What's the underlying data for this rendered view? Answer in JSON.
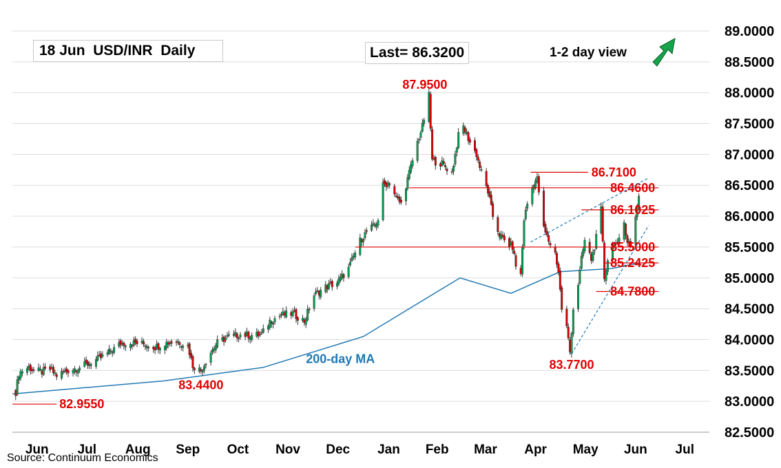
{
  "header": {
    "title": "18 Jun  USD/INR  Daily",
    "last": "Last= 86.3200",
    "view": "1-2 day view"
  },
  "source": "Source: Continuum Economics",
  "colors": {
    "up": "#00a651",
    "down": "#e00000",
    "level": "#e00000",
    "ma": "#1f78b4",
    "grid": "#dcdcdc",
    "arrow": "#16a34a"
  },
  "chart_data": {
    "type": "candlestick",
    "title": "18 Jun  USD/INR  Daily",
    "ylim": [
      82.5,
      89.0
    ],
    "yticks": [
      "82.5000",
      "83.0000",
      "83.5000",
      "84.0000",
      "84.5000",
      "85.0000",
      "85.5000",
      "86.0000",
      "86.5000",
      "87.0000",
      "87.5000",
      "88.0000",
      "88.5000",
      "89.0000"
    ],
    "months": [
      "Jun",
      "Jul",
      "Aug",
      "Sep",
      "Oct",
      "Nov",
      "Dec",
      "Jan",
      "Feb",
      "Mar",
      "Apr",
      "May",
      "Jun",
      "Jul"
    ],
    "xrange": [
      "2024-06-01",
      "2025-07-31"
    ],
    "month_starts": [
      "2024-06-01",
      "2024-07-01",
      "2024-08-01",
      "2024-09-01",
      "2024-10-01",
      "2024-11-01",
      "2024-12-01",
      "2025-01-01",
      "2025-02-01",
      "2025-03-01",
      "2025-04-01",
      "2025-05-01",
      "2025-06-01",
      "2025-07-01"
    ],
    "grid": "horizontal",
    "closes": [
      [
        "2024-06-03",
        83.15
      ],
      [
        "2024-06-05",
        83.45
      ],
      [
        "2024-06-07",
        83.5
      ],
      [
        "2024-06-11",
        83.55
      ],
      [
        "2024-06-14",
        83.5
      ],
      [
        "2024-06-19",
        83.48
      ],
      [
        "2024-06-24",
        83.52
      ],
      [
        "2024-06-28",
        83.42
      ],
      [
        "2024-07-05",
        83.5
      ],
      [
        "2024-07-12",
        83.55
      ],
      [
        "2024-07-19",
        83.63
      ],
      [
        "2024-07-26",
        83.72
      ],
      [
        "2024-08-02",
        83.85
      ],
      [
        "2024-08-06",
        83.94
      ],
      [
        "2024-08-13",
        83.95
      ],
      [
        "2024-08-20",
        83.93
      ],
      [
        "2024-08-27",
        83.88
      ],
      [
        "2024-09-03",
        83.95
      ],
      [
        "2024-09-10",
        83.97
      ],
      [
        "2024-09-16",
        83.9
      ],
      [
        "2024-09-19",
        83.58
      ],
      [
        "2024-09-24",
        83.5
      ],
      [
        "2024-09-30",
        83.8
      ],
      [
        "2024-10-04",
        83.95
      ],
      [
        "2024-10-11",
        84.05
      ],
      [
        "2024-10-18",
        84.08
      ],
      [
        "2024-10-25",
        84.07
      ],
      [
        "2024-10-31",
        84.08
      ],
      [
        "2024-11-05",
        84.3
      ],
      [
        "2024-11-12",
        84.4
      ],
      [
        "2024-11-19",
        84.42
      ],
      [
        "2024-11-26",
        84.3
      ],
      [
        "2024-12-02",
        84.72
      ],
      [
        "2024-12-09",
        84.85
      ],
      [
        "2024-12-16",
        84.92
      ],
      [
        "2024-12-23",
        85.15
      ],
      [
        "2024-12-30",
        85.6
      ],
      [
        "2025-01-03",
        85.75
      ],
      [
        "2025-01-08",
        85.85
      ],
      [
        "2025-01-10",
        85.95
      ],
      [
        "2025-01-13",
        86.5
      ],
      [
        "2025-01-17",
        86.55
      ],
      [
        "2025-01-21",
        86.3
      ],
      [
        "2025-01-24",
        86.2
      ],
      [
        "2025-01-28",
        86.6
      ],
      [
        "2025-02-03",
        87.2
      ],
      [
        "2025-02-06",
        87.45
      ],
      [
        "2025-02-10",
        87.95
      ],
      [
        "2025-02-12",
        86.9
      ],
      [
        "2025-02-18",
        86.85
      ],
      [
        "2025-02-24",
        86.7
      ],
      [
        "2025-02-28",
        87.3
      ],
      [
        "2025-03-03",
        87.45
      ],
      [
        "2025-03-07",
        87.2
      ],
      [
        "2025-03-11",
        87.0
      ],
      [
        "2025-03-14",
        86.7
      ],
      [
        "2025-03-18",
        86.4
      ],
      [
        "2025-03-21",
        86.0
      ],
      [
        "2025-03-25",
        85.7
      ],
      [
        "2025-03-28",
        85.6
      ],
      [
        "2025-04-02",
        85.5
      ],
      [
        "2025-04-04",
        85.2
      ],
      [
        "2025-04-07",
        85.05
      ],
      [
        "2025-04-09",
        85.95
      ],
      [
        "2025-04-11",
        86.2
      ],
      [
        "2025-04-15",
        86.55
      ],
      [
        "2025-04-17",
        86.6
      ],
      [
        "2025-04-21",
        85.8
      ],
      [
        "2025-04-24",
        85.6
      ],
      [
        "2025-04-28",
        85.4
      ],
      [
        "2025-04-30",
        85.1
      ],
      [
        "2025-05-02",
        84.5
      ],
      [
        "2025-05-05",
        84.2
      ],
      [
        "2025-05-07",
        83.8
      ],
      [
        "2025-05-09",
        84.5
      ],
      [
        "2025-05-12",
        84.9
      ],
      [
        "2025-05-14",
        85.3
      ],
      [
        "2025-05-16",
        85.6
      ],
      [
        "2025-05-20",
        85.3
      ],
      [
        "2025-05-22",
        85.5
      ],
      [
        "2025-05-26",
        86.1
      ],
      [
        "2025-05-28",
        85.0
      ],
      [
        "2025-05-30",
        85.3
      ],
      [
        "2025-06-03",
        85.6
      ],
      [
        "2025-06-05",
        85.5
      ],
      [
        "2025-06-09",
        85.9
      ],
      [
        "2025-06-11",
        85.6
      ],
      [
        "2025-06-13",
        85.5
      ],
      [
        "2025-06-16",
        86.0
      ],
      [
        "2025-06-17",
        86.2
      ],
      [
        "2025-06-18",
        86.32
      ]
    ],
    "series": [
      {
        "label": "200-day MA",
        "values": [
          [
            "2024-06-01",
            83.12
          ],
          [
            "2024-09-01",
            83.33
          ],
          [
            "2024-11-01",
            83.55
          ],
          [
            "2025-01-01",
            84.05
          ],
          [
            "2025-02-01",
            84.55
          ],
          [
            "2025-03-01",
            85.0
          ],
          [
            "2025-04-01",
            84.75
          ],
          [
            "2025-05-01",
            85.1
          ],
          [
            "2025-06-01",
            85.15
          ],
          [
            "2025-06-18",
            85.24
          ]
        ]
      }
    ],
    "levels": [
      {
        "value": 87.95,
        "label": "87.9500",
        "from": "2025-02-03",
        "to": "2025-02-12",
        "line": false,
        "label_pos": "above"
      },
      {
        "value": 86.71,
        "label": "86.7100",
        "from": "2025-04-13",
        "to": "2025-05-18",
        "line": true,
        "label_pos": "right"
      },
      {
        "value": 86.46,
        "label": "86.4600",
        "from": "2025-01-29",
        "to": "2025-06-30",
        "line": true,
        "label_pos": "right"
      },
      {
        "value": 86.1025,
        "label": "86.1025",
        "from": "2025-05-14",
        "to": "2025-06-30",
        "line": true,
        "label_pos": "right"
      },
      {
        "value": 85.5,
        "label": "85.5000",
        "from": "2024-12-27",
        "to": "2025-06-30",
        "line": true,
        "label_pos": "right"
      },
      {
        "value": 85.2425,
        "label": "85.2425",
        "from": "2025-05-28",
        "to": "2025-06-30",
        "line": true,
        "label_pos": "right"
      },
      {
        "value": 84.78,
        "label": "84.7800",
        "from": "2025-05-23",
        "to": "2025-06-30",
        "line": true,
        "label_pos": "right"
      },
      {
        "value": 83.77,
        "label": "83.7700",
        "from": "2025-05-08",
        "to": "2025-05-08",
        "line": false,
        "label_pos": "below"
      },
      {
        "value": 83.44,
        "label": "83.4400",
        "from": "2024-09-24",
        "to": "2024-09-24",
        "line": false,
        "label_pos": "below"
      },
      {
        "value": 82.955,
        "label": "82.9550",
        "from": "2024-06-01",
        "to": "2024-06-28",
        "line": true,
        "label_pos": "right"
      }
    ],
    "trendlines": [
      {
        "from": [
          "2025-04-13",
          85.58
        ],
        "to": [
          "2025-06-24",
          86.62
        ]
      },
      {
        "from": [
          "2025-05-08",
          83.77
        ],
        "to": [
          "2025-06-24",
          85.85
        ]
      }
    ],
    "annotations": [
      {
        "text": "200-day MA",
        "at": [
          "2024-12-18",
          83.62
        ]
      }
    ],
    "arrow": "up"
  }
}
